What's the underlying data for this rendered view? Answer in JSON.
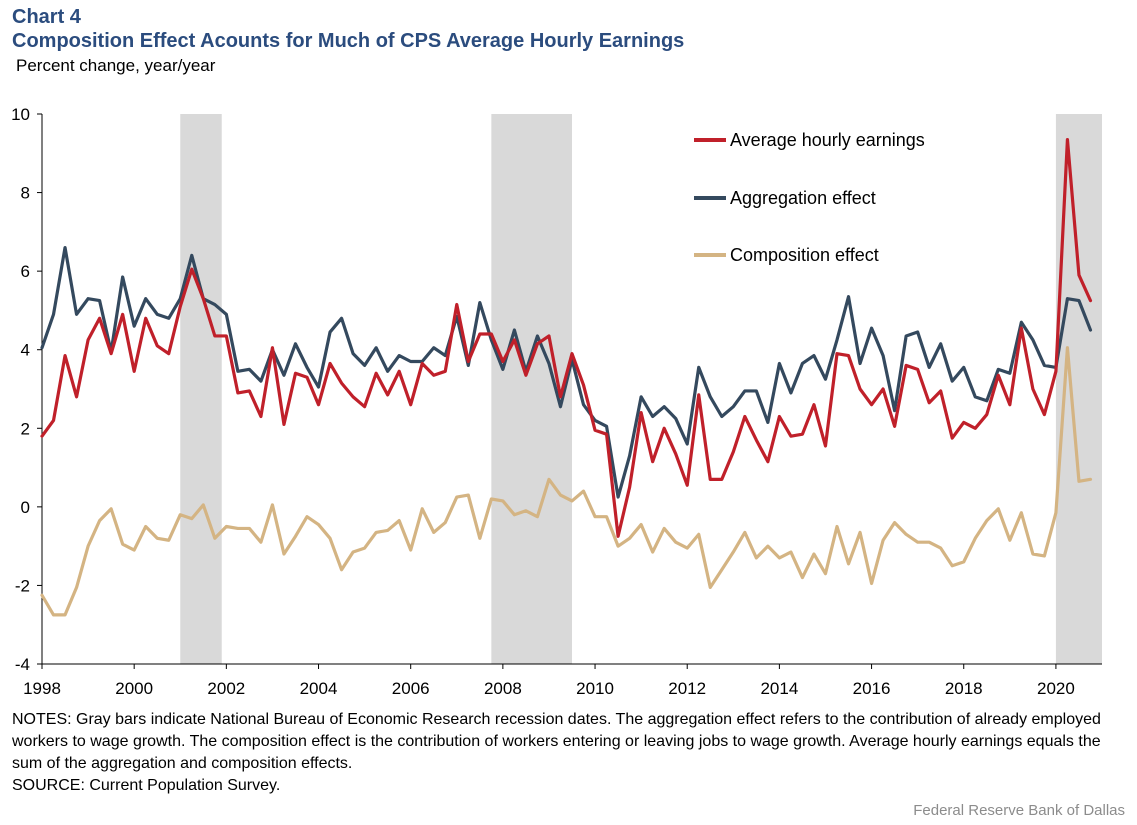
{
  "header": {
    "label": "Chart 4",
    "title": "Composition Effect Acounts for Much of CPS Average Hourly Earnings",
    "unit": "Percent change,  year/year"
  },
  "notes": {
    "text": "NOTES: Gray bars indicate National Bureau of Economic Research recession dates. The aggregation effect refers to the contribution of already employed workers to wage growth. The composition effect is the contribution of workers entering or leaving jobs to wage growth. Average hourly earnings equals the sum of the aggregation and composition effects.",
    "source": "SOURCE: Current Population Survey."
  },
  "credit": "Federal Reserve  Bank of Dallas",
  "chart_data": {
    "type": "line",
    "title": "Composition Effect Acounts for Much of CPS Average Hourly Earnings",
    "ylabel": "Percent change,  year/year",
    "xlim": [
      1998,
      2021
    ],
    "ylim": [
      -4,
      10
    ],
    "x_ticks": [
      "1998",
      "2000",
      "2002",
      "2004",
      "2006",
      "2008",
      "2010",
      "2012",
      "2014",
      "2016",
      "2018",
      "2020"
    ],
    "y_ticks": [
      "10",
      "8",
      "6",
      "4",
      "2",
      "0",
      "-2",
      "-4"
    ],
    "legend_placement": "top-right",
    "recessions": [
      {
        "start": 2001.0,
        "end": 2001.9
      },
      {
        "start": 2007.75,
        "end": 2009.5
      },
      {
        "start": 2020.0,
        "end": 2021.0
      }
    ],
    "x": [
      1998.0,
      1998.25,
      1998.5,
      1998.75,
      1999.0,
      1999.25,
      1999.5,
      1999.75,
      2000.0,
      2000.25,
      2000.5,
      2000.75,
      2001.0,
      2001.25,
      2001.5,
      2001.75,
      2002.0,
      2002.25,
      2002.5,
      2002.75,
      2003.0,
      2003.25,
      2003.5,
      2003.75,
      2004.0,
      2004.25,
      2004.5,
      2004.75,
      2005.0,
      2005.25,
      2005.5,
      2005.75,
      2006.0,
      2006.25,
      2006.5,
      2006.75,
      2007.0,
      2007.25,
      2007.5,
      2007.75,
      2008.0,
      2008.25,
      2008.5,
      2008.75,
      2009.0,
      2009.25,
      2009.5,
      2009.75,
      2010.0,
      2010.25,
      2010.5,
      2010.75,
      2011.0,
      2011.25,
      2011.5,
      2011.75,
      2012.0,
      2012.25,
      2012.5,
      2012.75,
      2013.0,
      2013.25,
      2013.5,
      2013.75,
      2014.0,
      2014.25,
      2014.5,
      2014.75,
      2015.0,
      2015.25,
      2015.5,
      2015.75,
      2016.0,
      2016.25,
      2016.5,
      2016.75,
      2017.0,
      2017.25,
      2017.5,
      2017.75,
      2018.0,
      2018.25,
      2018.5,
      2018.75,
      2019.0,
      2019.25,
      2019.5,
      2019.75,
      2020.0,
      2020.25,
      2020.5,
      2020.75
    ],
    "series": [
      {
        "name": "Average hourly earnings",
        "color": "#c0202a",
        "values": [
          1.8,
          2.2,
          3.85,
          2.8,
          4.25,
          4.8,
          3.9,
          4.9,
          3.45,
          4.8,
          4.1,
          3.9,
          5.1,
          6.05,
          5.3,
          4.35,
          4.35,
          2.9,
          2.95,
          2.3,
          4.05,
          2.1,
          3.4,
          3.3,
          2.6,
          3.65,
          3.15,
          2.8,
          2.55,
          3.4,
          2.85,
          3.45,
          2.6,
          3.65,
          3.35,
          3.45,
          5.15,
          3.7,
          4.4,
          4.4,
          3.7,
          4.25,
          3.35,
          4.15,
          4.35,
          2.8,
          3.9,
          3.1,
          1.95,
          1.85,
          -0.75,
          0.5,
          2.4,
          1.15,
          2.0,
          1.35,
          0.55,
          2.85,
          0.7,
          0.7,
          1.4,
          2.3,
          1.7,
          1.15,
          2.3,
          1.8,
          1.85,
          2.6,
          1.55,
          3.9,
          3.85,
          3.0,
          2.6,
          3.0,
          2.05,
          3.6,
          3.5,
          2.65,
          2.95,
          1.75,
          2.15,
          2.0,
          2.35,
          3.35,
          2.6,
          4.55,
          3.0,
          2.35,
          3.45,
          9.35,
          5.9,
          5.25
        ]
      },
      {
        "name": "Aggregation effect",
        "color": "#34495e",
        "values": [
          4.05,
          4.9,
          6.6,
          4.9,
          5.3,
          5.25,
          3.95,
          5.85,
          4.6,
          5.3,
          4.9,
          4.8,
          5.3,
          6.4,
          5.3,
          5.15,
          4.9,
          3.45,
          3.5,
          3.2,
          4.0,
          3.35,
          4.15,
          3.55,
          3.05,
          4.45,
          4.8,
          3.9,
          3.6,
          4.05,
          3.45,
          3.85,
          3.7,
          3.7,
          4.05,
          3.85,
          4.85,
          3.6,
          5.2,
          4.25,
          3.5,
          4.5,
          3.45,
          4.35,
          3.65,
          2.55,
          3.75,
          2.6,
          2.2,
          2.05,
          0.25,
          1.3,
          2.8,
          2.3,
          2.55,
          2.25,
          1.6,
          3.55,
          2.8,
          2.3,
          2.55,
          2.95,
          2.95,
          2.15,
          3.65,
          2.9,
          3.65,
          3.85,
          3.25,
          4.25,
          5.35,
          3.65,
          4.55,
          3.85,
          2.45,
          4.35,
          4.45,
          3.55,
          4.15,
          3.2,
          3.55,
          2.8,
          2.7,
          3.5,
          3.4,
          4.7,
          4.25,
          3.6,
          3.55,
          5.3,
          5.25,
          4.5
        ]
      },
      {
        "name": "Composition effect",
        "color": "#d4b483",
        "values": [
          -2.25,
          -2.75,
          -2.75,
          -2.05,
          -1.0,
          -0.35,
          -0.05,
          -0.95,
          -1.1,
          -0.5,
          -0.8,
          -0.85,
          -0.2,
          -0.3,
          0.05,
          -0.8,
          -0.5,
          -0.55,
          -0.55,
          -0.9,
          0.05,
          -1.2,
          -0.75,
          -0.25,
          -0.45,
          -0.8,
          -1.6,
          -1.15,
          -1.05,
          -0.65,
          -0.6,
          -0.35,
          -1.1,
          -0.05,
          -0.65,
          -0.4,
          0.25,
          0.3,
          -0.8,
          0.2,
          0.15,
          -0.2,
          -0.1,
          -0.25,
          0.7,
          0.3,
          0.15,
          0.4,
          -0.25,
          -0.25,
          -1.0,
          -0.8,
          -0.45,
          -1.15,
          -0.55,
          -0.9,
          -1.05,
          -0.7,
          -2.05,
          -1.6,
          -1.15,
          -0.65,
          -1.3,
          -1.0,
          -1.3,
          -1.15,
          -1.8,
          -1.2,
          -1.7,
          -0.5,
          -1.45,
          -0.65,
          -1.95,
          -0.85,
          -0.4,
          -0.7,
          -0.9,
          -0.9,
          -1.05,
          -1.5,
          -1.4,
          -0.8,
          -0.35,
          -0.05,
          -0.85,
          -0.15,
          -1.2,
          -1.25,
          -0.15,
          4.05,
          0.65,
          0.7
        ]
      }
    ]
  }
}
